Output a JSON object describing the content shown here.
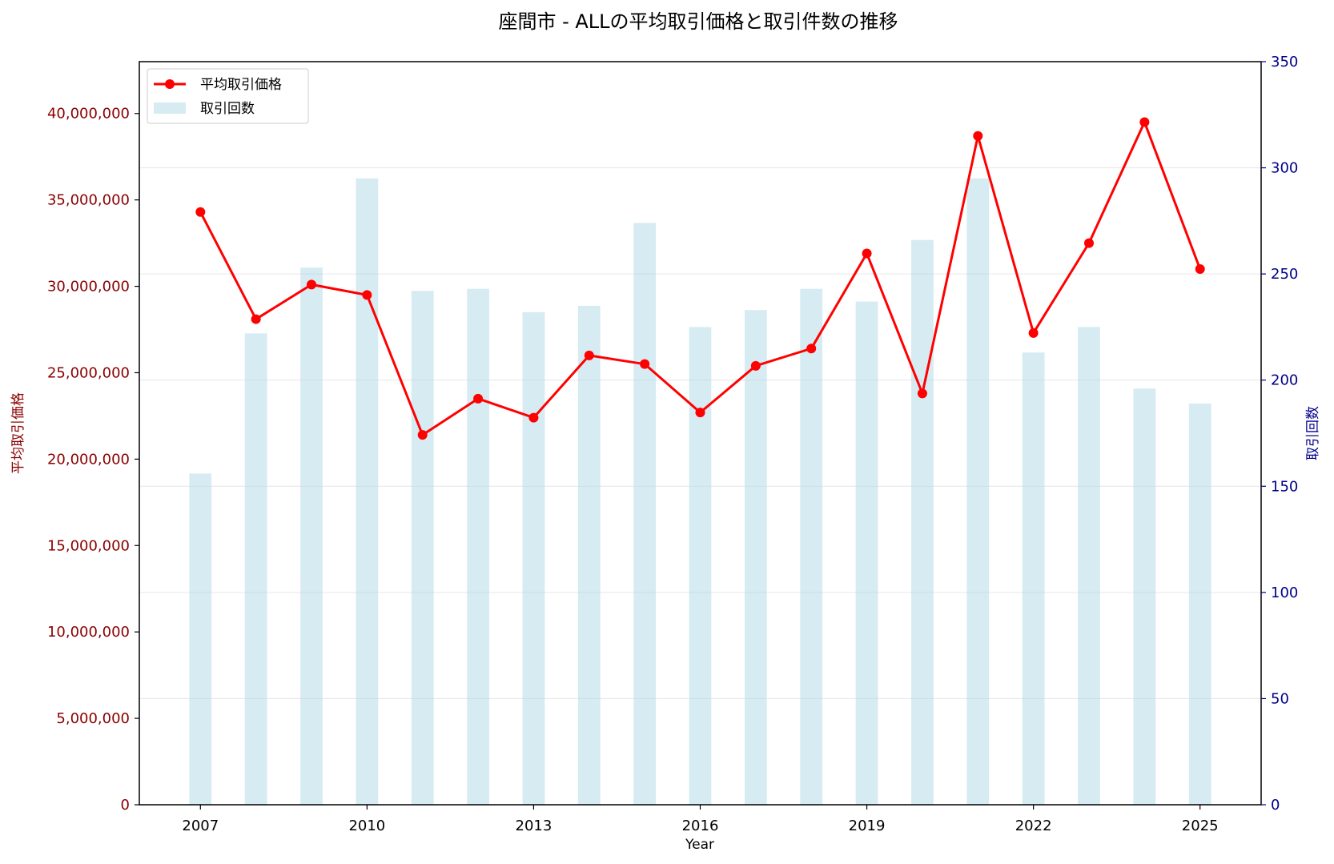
{
  "chart_data": {
    "type": "bar+line",
    "title": "座間市 - ALLの平均取引価格と取引件数の推移",
    "xlabel": "Year",
    "ylabel_left": "平均取引価格",
    "ylabel_right": "取引回数",
    "x": [
      2007,
      2008,
      2009,
      2010,
      2011,
      2012,
      2013,
      2014,
      2015,
      2016,
      2017,
      2018,
      2019,
      2020,
      2021,
      2022,
      2023,
      2024,
      2025
    ],
    "x_ticks": [
      "2007",
      "2010",
      "2013",
      "2016",
      "2019",
      "2022",
      "2025"
    ],
    "y_left_ticks": [
      "0",
      "5,000,000",
      "10,000,000",
      "15,000,000",
      "20,000,000",
      "25,000,000",
      "30,000,000",
      "35,000,000",
      "40,000,000"
    ],
    "y_right_ticks": [
      "0",
      "50",
      "100",
      "150",
      "200",
      "250",
      "300",
      "350"
    ],
    "ylim_left": [
      0,
      43000000
    ],
    "ylim_right": [
      0,
      350
    ],
    "xlim": [
      2005.9,
      2026.1
    ],
    "series": [
      {
        "name": "平均取引価格",
        "type": "line",
        "axis": "left",
        "color": "#ff0000",
        "values": [
          34300000,
          28100000,
          30100000,
          29500000,
          21400000,
          23500000,
          22400000,
          26000000,
          25500000,
          22700000,
          25400000,
          26400000,
          31900000,
          23800000,
          38700000,
          27300000,
          32500000,
          39500000,
          31000000
        ]
      },
      {
        "name": "取引回数",
        "type": "bar",
        "axis": "right",
        "color": "#add8e6",
        "values": [
          156,
          222,
          253,
          295,
          242,
          243,
          232,
          235,
          274,
          225,
          233,
          243,
          237,
          266,
          295,
          213,
          225,
          196,
          189
        ]
      }
    ],
    "grid": true,
    "legend_position": "top-left"
  }
}
